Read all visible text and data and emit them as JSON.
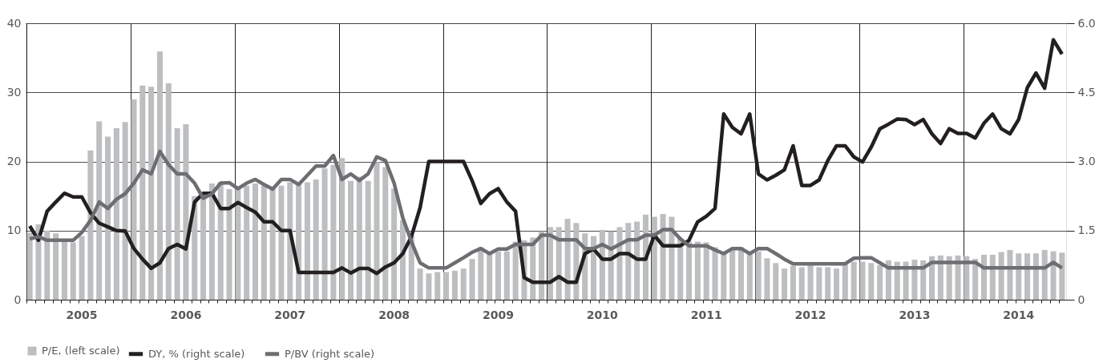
{
  "chart_data": {
    "type": "bar",
    "categories": [
      null,
      null,
      null,
      null,
      null,
      null,
      "2005",
      null,
      null,
      null,
      null,
      null,
      null,
      null,
      null,
      null,
      null,
      null,
      "2006",
      null,
      null,
      null,
      null,
      null,
      null,
      null,
      null,
      null,
      null,
      null,
      "2007",
      null,
      null,
      null,
      null,
      null,
      null,
      null,
      null,
      null,
      null,
      null,
      "2008",
      null,
      null,
      null,
      null,
      null,
      null,
      null,
      null,
      null,
      null,
      null,
      "2009",
      null,
      null,
      null,
      null,
      null,
      null,
      null,
      null,
      null,
      null,
      null,
      "2010",
      null,
      null,
      null,
      null,
      null,
      null,
      null,
      null,
      null,
      null,
      null,
      "2011",
      null,
      null,
      null,
      null,
      null,
      null,
      null,
      null,
      null,
      null,
      null,
      "2012",
      null,
      null,
      null,
      null,
      null,
      null,
      null,
      null,
      null,
      null,
      null,
      "2013",
      null,
      null,
      null,
      null,
      null,
      null,
      null,
      null,
      null,
      null,
      null,
      "2014",
      null,
      null,
      null,
      null,
      null
    ],
    "series": [
      {
        "name": "P/E, (left scale)",
        "color": "#bcbec0",
        "values": [
          9.7,
          10.9,
          10.0,
          9.6,
          8.4,
          8.3,
          9.2,
          21.6,
          25.8,
          23.6,
          24.8,
          25.7,
          29.0,
          31.0,
          30.8,
          35.9,
          31.3,
          24.8,
          25.4,
          15.0,
          15.0,
          16.8,
          17.0,
          16.0,
          16.0,
          16.5,
          16.8,
          16.5,
          16.0,
          16.5,
          17.0,
          16.8,
          17.0,
          17.4,
          19.0,
          19.5,
          20.5,
          17.2,
          17.8,
          17.2,
          19.9,
          19.2,
          16.1,
          11.5,
          9.2,
          4.5,
          3.8,
          4.0,
          4.0,
          4.2,
          4.5,
          5.9,
          7.6,
          6.7,
          7.0,
          7.0,
          8.4,
          8.6,
          9.0,
          9.9,
          10.5,
          10.5,
          11.7,
          11.1,
          9.6,
          9.2,
          10.1,
          9.9,
          10.5,
          11.1,
          11.3,
          12.3,
          12.0,
          12.4,
          12.0,
          8.8,
          8.4,
          8.4,
          8.3,
          7.6,
          6.7,
          7.4,
          7.6,
          6.7,
          7.0,
          6.0,
          5.3,
          4.5,
          4.9,
          4.7,
          5.0,
          4.7,
          4.7,
          4.5,
          5.2,
          5.5,
          5.5,
          5.3,
          5.0,
          5.7,
          5.5,
          5.5,
          5.8,
          5.7,
          6.3,
          6.4,
          6.3,
          6.4,
          6.3,
          5.9,
          6.5,
          6.5,
          6.9,
          7.2,
          6.7,
          6.7,
          6.7,
          7.2,
          7.0,
          6.8
        ]
      },
      {
        "name": "DY, % (right scale)",
        "type": "line",
        "axis": "y2",
        "color": "#231f20",
        "values": [
          1.6,
          1.29,
          1.92,
          2.12,
          2.31,
          2.23,
          2.23,
          1.89,
          1.66,
          1.58,
          1.5,
          1.49,
          1.11,
          0.88,
          0.68,
          0.8,
          1.11,
          1.2,
          1.1,
          2.12,
          2.31,
          2.31,
          1.98,
          1.98,
          2.11,
          2.0,
          1.9,
          1.69,
          1.69,
          1.5,
          1.5,
          0.59,
          0.59,
          0.59,
          0.59,
          0.59,
          0.69,
          0.58,
          0.68,
          0.68,
          0.57,
          0.71,
          0.8,
          1.0,
          1.37,
          2.0,
          3.0,
          3.0,
          3.0,
          3.0,
          3.0,
          2.58,
          2.09,
          2.3,
          2.41,
          2.12,
          1.92,
          0.48,
          0.38,
          0.38,
          0.38,
          0.5,
          0.38,
          0.38,
          1.0,
          1.1,
          0.88,
          0.88,
          1.0,
          1.0,
          0.88,
          0.88,
          1.4,
          1.17,
          1.17,
          1.17,
          1.29,
          1.69,
          1.81,
          1.98,
          4.03,
          3.74,
          3.6,
          4.03,
          2.73,
          2.6,
          2.7,
          2.82,
          3.34,
          2.48,
          2.48,
          2.6,
          3.02,
          3.34,
          3.34,
          3.1,
          2.99,
          3.31,
          3.71,
          3.81,
          3.92,
          3.91,
          3.8,
          3.91,
          3.6,
          3.39,
          3.71,
          3.61,
          3.61,
          3.51,
          3.83,
          4.03,
          3.71,
          3.6,
          3.91,
          4.6,
          4.92,
          4.59,
          5.64,
          5.33
        ]
      },
      {
        "name": "P/BV (right scale)",
        "type": "line",
        "axis": "y2",
        "color": "#6d6e71",
        "values": [
          1.32,
          1.37,
          1.29,
          1.29,
          1.29,
          1.29,
          1.46,
          1.72,
          2.12,
          1.98,
          2.18,
          2.3,
          2.53,
          2.82,
          2.73,
          3.22,
          2.93,
          2.73,
          2.73,
          2.53,
          2.2,
          2.3,
          2.53,
          2.54,
          2.41,
          2.53,
          2.61,
          2.5,
          2.4,
          2.61,
          2.61,
          2.5,
          2.7,
          2.9,
          2.9,
          3.13,
          2.61,
          2.73,
          2.59,
          2.73,
          3.1,
          3.02,
          2.53,
          1.78,
          1.26,
          0.8,
          0.69,
          0.69,
          0.69,
          0.8,
          0.91,
          1.03,
          1.11,
          1.0,
          1.1,
          1.1,
          1.2,
          1.2,
          1.2,
          1.4,
          1.4,
          1.3,
          1.3,
          1.3,
          1.11,
          1.11,
          1.2,
          1.1,
          1.2,
          1.3,
          1.3,
          1.4,
          1.4,
          1.52,
          1.52,
          1.32,
          1.17,
          1.17,
          1.17,
          1.08,
          1.0,
          1.11,
          1.11,
          1.0,
          1.11,
          1.11,
          1.0,
          0.88,
          0.78,
          0.78,
          0.78,
          0.78,
          0.78,
          0.78,
          0.78,
          0.9,
          0.91,
          0.91,
          0.8,
          0.69,
          0.69,
          0.69,
          0.69,
          0.69,
          0.81,
          0.81,
          0.81,
          0.81,
          0.81,
          0.81,
          0.69,
          0.69,
          0.69,
          0.69,
          0.69,
          0.69,
          0.69,
          0.69,
          0.81,
          0.69
        ]
      }
    ],
    "ylim": [
      0,
      40
    ],
    "yticks": [
      0,
      10,
      20,
      30,
      40
    ],
    "y2lim": [
      0,
      6
    ],
    "y2ticks": [
      0,
      1.5,
      {
        "value": 3,
        "label": "3.0"
      },
      4.5,
      {
        "value": 6,
        "label": "6.0"
      }
    ],
    "grid": true,
    "legend": "bottom left",
    "line_style": "solid"
  }
}
